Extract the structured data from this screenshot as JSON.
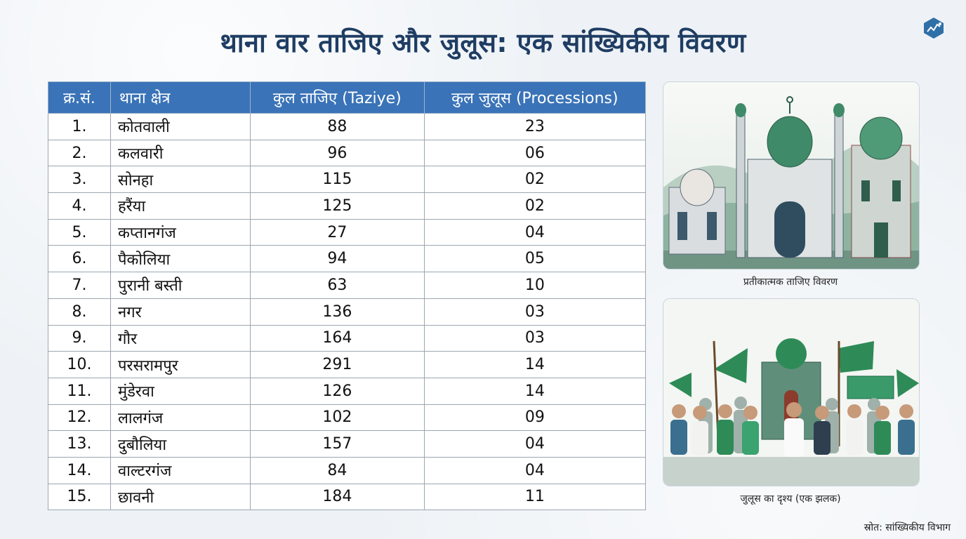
{
  "title": "थाना वार ताजिए और जुलूस: एक सांख्यिकीय विवरण",
  "logo_icon": "chart-logo-icon",
  "table": {
    "headers": {
      "sn": "क्र.सं.",
      "station": "थाना क्षेत्र",
      "taziye": "कुल ताजिए (Taziye)",
      "processions": "कुल जुलूस (Processions)"
    },
    "rows": [
      {
        "sn": "1.",
        "station": "कोतवाली",
        "taziye": "88",
        "processions": "23"
      },
      {
        "sn": "2.",
        "station": "कलवारी",
        "taziye": "96",
        "processions": "06"
      },
      {
        "sn": "3.",
        "station": "सोनहा",
        "taziye": "115",
        "processions": "02"
      },
      {
        "sn": "4.",
        "station": "हरैंया",
        "taziye": "125",
        "processions": "02"
      },
      {
        "sn": "5.",
        "station": "कप्तानगंज",
        "taziye": "27",
        "processions": "04"
      },
      {
        "sn": "6.",
        "station": "पैकोलिया",
        "taziye": "94",
        "processions": "05"
      },
      {
        "sn": "7.",
        "station": "पुरानी बस्ती",
        "taziye": "63",
        "processions": "10"
      },
      {
        "sn": "8.",
        "station": "नगर",
        "taziye": "136",
        "processions": "03"
      },
      {
        "sn": "9.",
        "station": "गौर",
        "taziye": "164",
        "processions": "03"
      },
      {
        "sn": "10.",
        "station": "परसरामपुर",
        "taziye": "291",
        "processions": "14"
      },
      {
        "sn": "11.",
        "station": "मुंडेरवा",
        "taziye": "126",
        "processions": "14"
      },
      {
        "sn": "12.",
        "station": "लालगंज",
        "taziye": "102",
        "processions": "09"
      },
      {
        "sn": "13.",
        "station": "दुबौलिया",
        "taziye": "157",
        "processions": "04"
      },
      {
        "sn": "14.",
        "station": "वाल्टरगंज",
        "taziye": "84",
        "processions": "04"
      },
      {
        "sn": "15.",
        "station": "छावनी",
        "taziye": "184",
        "processions": "11"
      }
    ]
  },
  "images": {
    "taziye_caption": "प्रतीकात्मक ताजिए विवरण",
    "procession_caption": "जुलूस का दृश्य (एक झलक)"
  },
  "source": "स्रोत: सांख्यिकीय विभाग",
  "colors": {
    "title": "#1f3d63",
    "header_bg": "#3a73b8",
    "green": "#2e8b57",
    "dark_green": "#1f6b44"
  }
}
